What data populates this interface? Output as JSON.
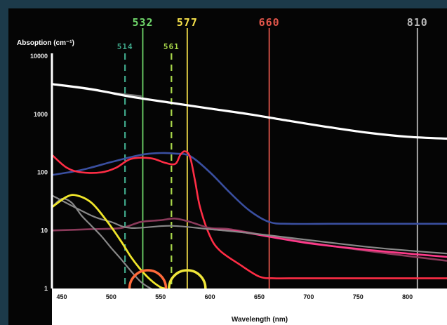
{
  "chart_data": {
    "type": "line",
    "title": "",
    "xlabel": "Wavelength (nm)",
    "ylabel": "Absoption (cm⁻¹)",
    "x_scale": "linear",
    "y_scale": "log",
    "xlim": [
      440,
      840
    ],
    "ylim": [
      1,
      10000
    ],
    "x_ticks": [
      "450",
      "500",
      "550",
      "600",
      "650",
      "700",
      "750",
      "800"
    ],
    "y_ticks": [
      "10000",
      "1000",
      "100",
      "10",
      "1"
    ],
    "grid": false,
    "legend": "none",
    "series": [
      {
        "color": "#ffffff",
        "width": 3.2,
        "opacity": 1,
        "x": [
          440,
          480,
          520,
          560,
          600,
          640,
          680,
          720,
          760,
          800,
          840
        ],
        "y": [
          3300,
          2700,
          2000,
          1580,
          1250,
          1000,
          770,
          600,
          480,
          410,
          380
        ]
      },
      {
        "color": "#ffffff",
        "width": 2.6,
        "opacity": 0.45,
        "x": [
          440,
          470,
          500,
          530
        ],
        "y": [
          3300,
          2800,
          2350,
          2050
        ]
      },
      {
        "color": "#3a4fa0",
        "width": 2.6,
        "opacity": 1,
        "x": [
          440,
          470,
          500,
          530,
          550,
          565,
          580,
          600,
          620,
          640,
          660,
          680,
          720,
          760,
          800,
          840
        ],
        "y": [
          90,
          110,
          150,
          200,
          215,
          210,
          190,
          100,
          45,
          22,
          14,
          13,
          13,
          13,
          13,
          13
        ]
      },
      {
        "color": "#ff2d45",
        "width": 2.6,
        "opacity": 1,
        "x": [
          440,
          455,
          470,
          490,
          505,
          520,
          540,
          555,
          565,
          570,
          575,
          580,
          585,
          590,
          600,
          610,
          630,
          650,
          665,
          680,
          720,
          760,
          800,
          840
        ],
        "y": [
          200,
          120,
          100,
          100,
          120,
          170,
          175,
          145,
          140,
          200,
          230,
          180,
          70,
          25,
          8,
          4.5,
          2.6,
          1.6,
          1.5,
          1.5,
          1.5,
          1.5,
          1.5,
          1.5
        ]
      },
      {
        "color": "#8a3a5a",
        "width": 2.6,
        "opacity": 1,
        "x": [
          440,
          480,
          510,
          530,
          550,
          565,
          580,
          600,
          620,
          660,
          720,
          780,
          840
        ],
        "y": [
          10,
          10.5,
          11,
          14,
          15,
          16,
          14,
          11,
          10.5,
          8,
          5.5,
          4,
          3
        ]
      },
      {
        "color": "#ff3a8a",
        "width": 2.6,
        "opacity": 1,
        "x": [
          600,
          630,
          660,
          700,
          750,
          800,
          840
        ],
        "y": [
          10.5,
          9.5,
          7.8,
          6,
          4.8,
          4,
          3.5
        ]
      },
      {
        "color": "#888888",
        "width": 2.2,
        "opacity": 1,
        "x": [
          440,
          480,
          500,
          520,
          560,
          600,
          640,
          680,
          720,
          760,
          800,
          840
        ],
        "y": [
          40,
          18,
          14,
          11,
          12,
          10.5,
          9,
          7.5,
          6.2,
          5.2,
          4.5,
          4
        ]
      },
      {
        "color": "#888888",
        "width": 2.2,
        "opacity": 1,
        "x": [
          440,
          450,
          460,
          470,
          480,
          490,
          500,
          510,
          520,
          530,
          540,
          545,
          550
        ],
        "y": [
          25,
          35,
          30,
          18,
          12,
          8,
          5,
          3.2,
          2.0,
          1.3,
          1.0,
          0.95,
          1.0
        ]
      },
      {
        "color": "#f0e62a",
        "width": 2.8,
        "opacity": 1,
        "x": [
          440,
          455,
          465,
          480,
          495,
          510,
          520,
          530,
          540,
          550,
          555
        ],
        "y": [
          25,
          38,
          40,
          30,
          15,
          6.5,
          3.5,
          2.1,
          1.4,
          1.05,
          1.0
        ]
      }
    ],
    "wavelength_lines": [
      {
        "label": "532",
        "x": 532,
        "color": "#6fd66a",
        "style": "solid",
        "row": "top"
      },
      {
        "label": "577",
        "x": 577,
        "color": "#f5e04a",
        "style": "solid",
        "row": "top"
      },
      {
        "label": "660",
        "x": 660,
        "color": "#e0554a",
        "style": "solid",
        "row": "top"
      },
      {
        "label": "810",
        "x": 810,
        "color": "#b8b8b8",
        "style": "solid",
        "row": "top"
      },
      {
        "label": "514",
        "x": 514,
        "color": "#3fa88a",
        "style": "dashed",
        "row": "sub"
      },
      {
        "label": "561",
        "x": 561,
        "color": "#a9d84a",
        "style": "dashed",
        "row": "sub"
      }
    ],
    "highlight_circles": [
      {
        "x": 537,
        "y": 1.0,
        "color": "#ff6a3a"
      },
      {
        "x": 577,
        "y": 1.0,
        "color": "#f0e63a"
      }
    ]
  }
}
